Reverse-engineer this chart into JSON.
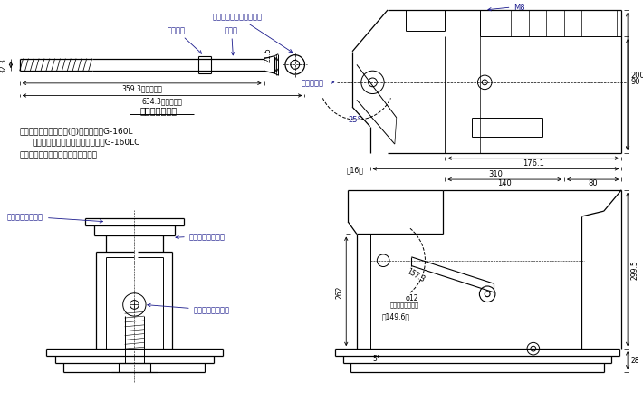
{
  "bg_color": "#ffffff",
  "line_color": "#000000",
  "dim_color": "#000000",
  "label_color": "#1a1a8c",
  "lever_label_release": "リリーズスクリュ差込口",
  "lever_label_stopper": "ストッパ",
  "lever_label_extend": "伸縮式",
  "lever_dim1": "32.3",
  "lever_dim2": "21.5",
  "lever_dim3": "359.3（最縮長）",
  "lever_dim4": "634.3（最伸長）",
  "lever_title": "専用操作レバー",
  "tr_label_m8": "M8",
  "tr_label_lever": "レバー回転",
  "tr_label_angle": "25°",
  "tr_dim_90": "90",
  "tr_dim_200": "200",
  "tr_dim_176": "176.1",
  "tr_dim_310": "310",
  "tr_dim_16": "［16］",
  "tr_dim_140": "140",
  "tr_dim_80": "80",
  "bl_label_oil": "オイルフィリング",
  "bl_label_lever_in": "操作レバー差込口",
  "bl_label_release": "リリーズスクリュ",
  "br_dim_140": "140",
  "br_dim_80": "80",
  "br_dim_262": "262",
  "br_dim_phi": "φ12",
  "br_dim_cyl": "（シリンダ内径）",
  "br_dim_5deg": "5°",
  "br_dim_28": "28",
  "br_dim_299": "299.5",
  "br_dim_157": "157.3",
  "br_dim_149": "［149.6］",
  "note1a": "注１．型式　標準塗装(赤)タイプ　：G-160L",
  "note1b": "　　　　ニッケルめっきタイプ：G-160LC",
  "note2": "２．専用操作レバーが付属します。"
}
